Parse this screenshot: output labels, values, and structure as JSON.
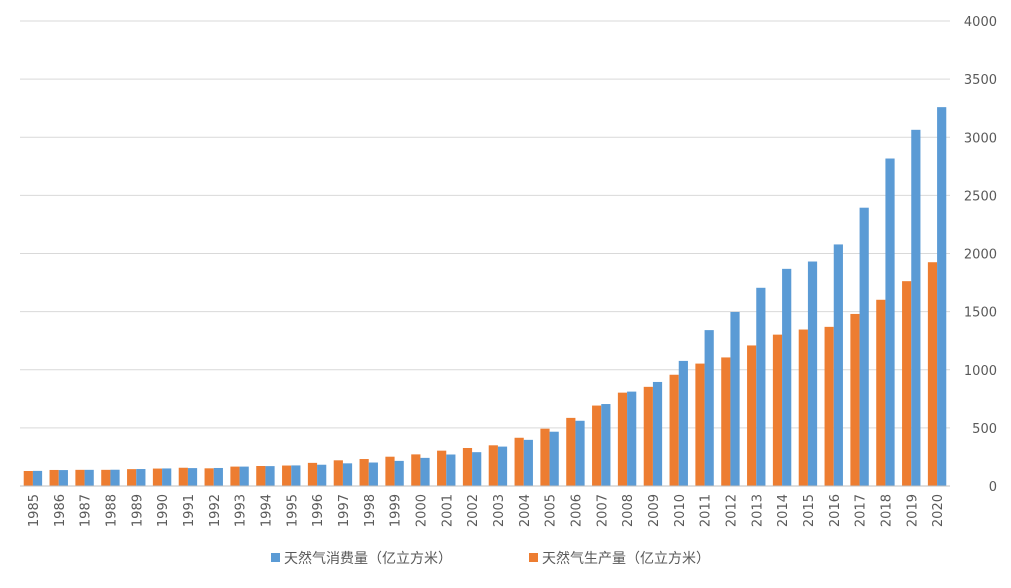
{
  "chart_data": {
    "type": "bar",
    "categories": [
      "1985",
      "1986",
      "1987",
      "1988",
      "1989",
      "1990",
      "1991",
      "1992",
      "1993",
      "1994",
      "1995",
      "1996",
      "1997",
      "1998",
      "1999",
      "2000",
      "2001",
      "2002",
      "2003",
      "2004",
      "2005",
      "2006",
      "2007",
      "2008",
      "2009",
      "2010",
      "2011",
      "2012",
      "2013",
      "2014",
      "2015",
      "2016",
      "2017",
      "2018",
      "2019",
      "2020"
    ],
    "series": [
      {
        "name": "天然气消费量（亿立方米）",
        "color": "#5b9bd5",
        "values": [
          130,
          137,
          139,
          140,
          146,
          151,
          154,
          155,
          167,
          171,
          177,
          183,
          195,
          202,
          216,
          242,
          271,
          291,
          339,
          397,
          467,
          561,
          705,
          812,
          895,
          1076,
          1341,
          1497,
          1705,
          1868,
          1931,
          2078,
          2394,
          2817,
          3064,
          3259
        ]
      },
      {
        "name": "天然气生产量（亿立方米）",
        "color": "#ed7d31",
        "values": [
          129,
          138,
          139,
          139,
          145,
          150,
          157,
          152,
          167,
          172,
          176,
          199,
          221,
          232,
          252,
          272,
          304,
          327,
          350,
          415,
          493,
          586,
          692,
          803,
          853,
          957,
          1053,
          1106,
          1209,
          1302,
          1346,
          1369,
          1480,
          1602,
          1762,
          1925
        ]
      }
    ],
    "xlabel": "",
    "ylabel": "",
    "ylim": [
      0,
      4000
    ],
    "yticks": [
      "0",
      "500",
      "1000",
      "1500",
      "2000",
      "2500",
      "3000",
      "3500",
      "4000"
    ],
    "grid": true,
    "legend_position": "bottom"
  }
}
